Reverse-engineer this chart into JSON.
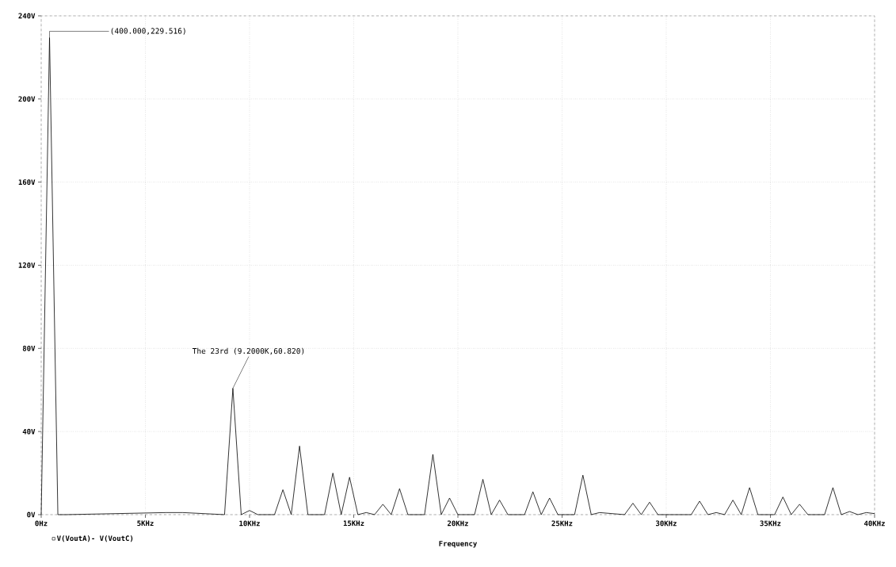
{
  "chart_data": {
    "type": "line",
    "xlabel": "Frequency",
    "xlim": [
      0,
      40
    ],
    "ylim": [
      0,
      240
    ],
    "xticks": [
      {
        "value": 0,
        "label": "0Hz"
      },
      {
        "value": 5,
        "label": "5KHz"
      },
      {
        "value": 10,
        "label": "10KHz"
      },
      {
        "value": 15,
        "label": "15KHz"
      },
      {
        "value": 20,
        "label": "20KHz"
      },
      {
        "value": 25,
        "label": "25KHz"
      },
      {
        "value": 30,
        "label": "30KHz"
      },
      {
        "value": 35,
        "label": "35KHz"
      },
      {
        "value": 40,
        "label": "40KHz"
      }
    ],
    "yticks": [
      {
        "value": 0,
        "label": "0V"
      },
      {
        "value": 40,
        "label": "40V"
      },
      {
        "value": 80,
        "label": "80V"
      },
      {
        "value": 120,
        "label": "120V"
      },
      {
        "value": 160,
        "label": "160V"
      },
      {
        "value": 200,
        "label": "200V"
      },
      {
        "value": 240,
        "label": "240V"
      }
    ],
    "grid": true,
    "legend": "bottom left",
    "marker": "none",
    "line_style": "solid",
    "annotations": [
      {
        "text": "(400.000,229.516)",
        "x": 0.4,
        "y": 229.516
      },
      {
        "text": "The 23rd (9.2000K,60.820)",
        "x": 9.2,
        "y": 60.82
      }
    ],
    "series": [
      {
        "name": "V(VoutA)- V(VoutC)",
        "color": "#000000",
        "x": [
          0,
          0.4,
          0.8,
          1.2,
          6,
          6.8,
          8.8,
          9.2,
          9.6,
          10,
          10.4,
          11.2,
          11.6,
          12,
          12.4,
          12.8,
          13.6,
          14,
          14.4,
          14.8,
          15.2,
          15.6,
          16,
          16.4,
          16.8,
          17.2,
          17.6,
          18.4,
          18.8,
          19.2,
          19.6,
          20,
          20.8,
          21.2,
          21.6,
          22,
          22.4,
          23.2,
          23.6,
          24,
          24.4,
          24.8,
          25.6,
          26,
          26.4,
          26.8,
          28,
          28.4,
          28.8,
          29.2,
          29.6,
          31.2,
          31.6,
          32,
          32.4,
          32.8,
          33.2,
          33.6,
          34,
          34.4,
          35.2,
          35.6,
          36,
          36.4,
          36.8,
          37.6,
          38,
          38.4,
          38.8,
          39.2,
          39.6,
          40
        ],
        "values": [
          0,
          229.516,
          0,
          0,
          1,
          1,
          0,
          60.82,
          0,
          2,
          0,
          0,
          12,
          0,
          33,
          0,
          0,
          20,
          0,
          18,
          0,
          1,
          0,
          5,
          0,
          12.5,
          0,
          0,
          29,
          0,
          8,
          0,
          0,
          17,
          0,
          7,
          0,
          0,
          11,
          0,
          8,
          0,
          0,
          19,
          0,
          1,
          0,
          5.5,
          0,
          6,
          0,
          0,
          6.5,
          0,
          1,
          0,
          7,
          0,
          13,
          0,
          0,
          8.5,
          0,
          5,
          0,
          0,
          13,
          0,
          1.5,
          0,
          1,
          0.5
        ]
      }
    ]
  }
}
